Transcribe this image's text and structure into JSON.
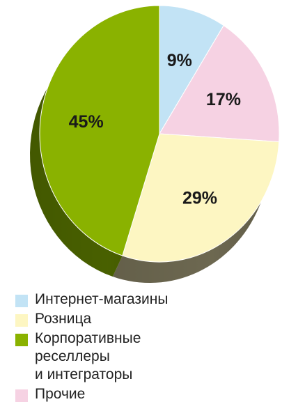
{
  "chart_data": {
    "type": "pie",
    "labels": [
      "Интернет-магазины",
      "Прочие",
      "Розница",
      "Корпоративные\nреселлеры\nи интеграторы"
    ],
    "values": [
      9,
      17,
      29,
      45
    ],
    "display_labels": [
      "9%",
      "17%",
      "29%",
      "45%"
    ],
    "colors": [
      "#c2e3f5",
      "#f6d2e3",
      "#fdf6c2",
      "#8ab200"
    ],
    "side_colors": [
      "#5a6f78",
      "#7c6870",
      "#6f6a52",
      "#4a6200"
    ],
    "units": "%",
    "legend_position": "bottom-left",
    "three_d": true
  },
  "legend": {
    "items": [
      {
        "label": "Интернет-магазины",
        "color": "#c2e3f5"
      },
      {
        "label": "Розница",
        "color": "#fdf6c2"
      },
      {
        "label": "Корпоративные\nреселлеры\nи интеграторы",
        "color": "#8ab200"
      },
      {
        "label": "Прочие",
        "color": "#f6d2e3"
      }
    ]
  }
}
